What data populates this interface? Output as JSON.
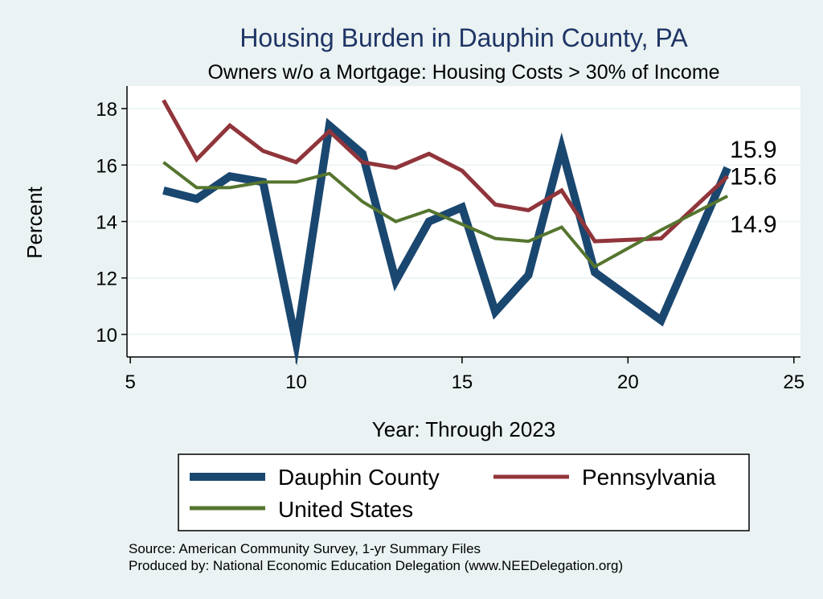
{
  "chart_data": {
    "type": "line",
    "title": "Housing Burden in Dauphin County, PA",
    "subtitle": "Owners w/o a Mortgage: Housing Costs > 30% of Income",
    "xlabel": "Year: Through 2023",
    "ylabel": "Percent",
    "xlim": [
      4.9,
      25.2
    ],
    "ylim": [
      9.2,
      18.8
    ],
    "xticks": [
      5,
      10,
      15,
      20,
      25
    ],
    "yticks": [
      10,
      12,
      14,
      16,
      18
    ],
    "grid": "horizontal",
    "legend_position": "bottom",
    "series": [
      {
        "name": "Dauphin County",
        "color": "#1a476f",
        "x": [
          6,
          7,
          8,
          9,
          10,
          11,
          12,
          13,
          14,
          15,
          16,
          17,
          18,
          19,
          21,
          23
        ],
        "values": [
          15.1,
          14.8,
          15.6,
          15.4,
          9.7,
          17.4,
          16.4,
          11.9,
          14.0,
          14.5,
          10.8,
          12.1,
          16.6,
          12.2,
          10.5,
          15.9
        ]
      },
      {
        "name": "Pennsylvania",
        "color": "#90353b",
        "x": [
          6,
          7,
          8,
          9,
          10,
          11,
          12,
          13,
          14,
          15,
          16,
          17,
          18,
          19,
          21,
          23
        ],
        "values": [
          18.3,
          16.2,
          17.4,
          16.5,
          16.1,
          17.2,
          16.1,
          15.9,
          16.4,
          15.8,
          14.6,
          14.4,
          15.1,
          13.3,
          13.4,
          15.6
        ]
      },
      {
        "name": "United States",
        "color": "#55752f",
        "x": [
          6,
          7,
          8,
          9,
          10,
          11,
          12,
          13,
          14,
          15,
          16,
          17,
          18,
          19,
          21,
          23
        ],
        "values": [
          16.1,
          15.2,
          15.2,
          15.4,
          15.4,
          15.7,
          14.7,
          14.0,
          14.4,
          13.9,
          13.4,
          13.3,
          13.8,
          12.4,
          13.7,
          14.9
        ]
      }
    ],
    "end_labels": [
      "15.9",
      "15.6",
      "14.9"
    ]
  },
  "footer": {
    "source": "Source: American Community Survey, 1-yr Summary Files",
    "produced_by": "Produced by: National Economic Education Delegation (www.NEEDelegation.org)"
  }
}
